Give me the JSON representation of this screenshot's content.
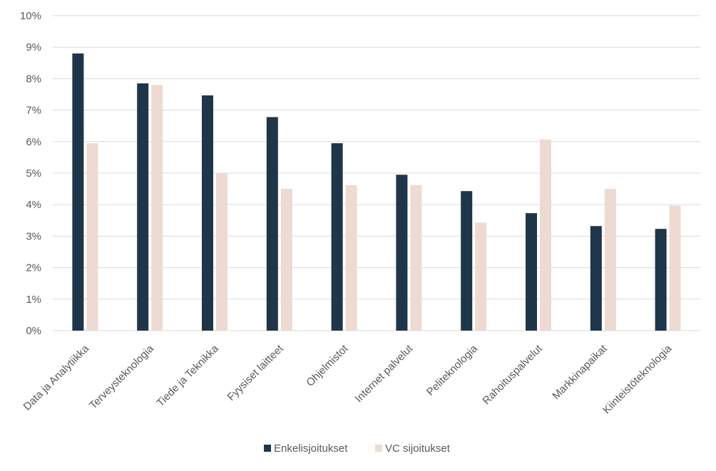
{
  "chart_data": {
    "type": "bar",
    "title": "",
    "xlabel": "",
    "ylabel": "",
    "ylim": [
      0,
      10
    ],
    "y_ticks": [
      "0%",
      "1%",
      "2%",
      "3%",
      "4%",
      "5%",
      "6%",
      "7%",
      "8%",
      "9%",
      "10%"
    ],
    "grid": true,
    "legend_position": "bottom",
    "categories": [
      "Data ja Analytiikka",
      "Terveysteknologia",
      "Tiede ja Teknikka",
      "Fyysiset laitteet",
      "Ohjelmistot",
      "Internet palvelut",
      "Peliteknologia",
      "Rahoituspalvelut",
      "Markkinapaikat",
      "Kiinteistöteknologia"
    ],
    "series": [
      {
        "name": "Enkelisjoitukset",
        "color": "#1f3549",
        "values": [
          8.8,
          7.85,
          7.47,
          6.78,
          5.95,
          4.95,
          4.43,
          3.73,
          3.32,
          3.23
        ]
      },
      {
        "name": "VC sijoitukset",
        "color": "#eddad2",
        "values": [
          5.95,
          7.8,
          5.0,
          4.5,
          4.62,
          4.62,
          3.43,
          6.07,
          4.5,
          3.97
        ]
      }
    ]
  }
}
